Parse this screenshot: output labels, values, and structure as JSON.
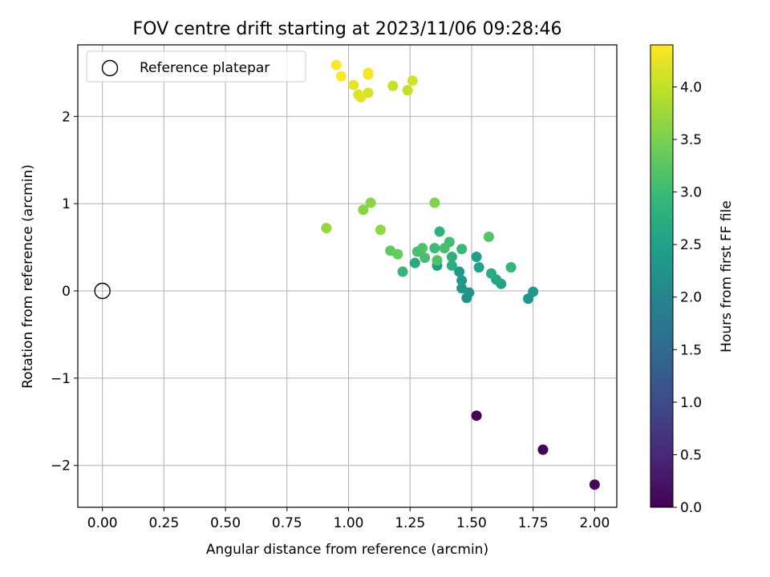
{
  "chart_data": {
    "type": "scatter",
    "title": "FOV centre drift starting at 2023/11/06 09:28:46",
    "xlabel": "Angular distance from reference (arcmin)",
    "ylabel": "Rotation from reference (arcmin)",
    "xlim": [
      -0.1,
      2.09
    ],
    "ylim": [
      -2.48,
      2.82
    ],
    "xticks": [
      0.0,
      0.25,
      0.5,
      0.75,
      1.0,
      1.25,
      1.5,
      1.75,
      2.0
    ],
    "xtick_labels": [
      "0.00",
      "0.25",
      "0.50",
      "0.75",
      "1.00",
      "1.25",
      "1.50",
      "1.75",
      "2.00"
    ],
    "yticks": [
      -2,
      -1,
      0,
      1,
      2
    ],
    "ytick_labels": [
      "−2",
      "−1",
      "0",
      "1",
      "2"
    ],
    "grid": true,
    "legend": {
      "position": "top-left",
      "entries": [
        "Reference platepar"
      ]
    },
    "reference_point": {
      "x": 0.0,
      "y": 0.0
    },
    "colorbar": {
      "label": "Hours from first FF file",
      "colormap": "viridis",
      "range": [
        0.0,
        4.4
      ],
      "ticks": [
        0.0,
        0.5,
        1.0,
        1.5,
        2.0,
        2.5,
        3.0,
        3.5,
        4.0
      ],
      "tick_labels": [
        "0.0",
        "0.5",
        "1.0",
        "1.5",
        "2.0",
        "2.5",
        "3.0",
        "3.5",
        "4.0"
      ]
    },
    "points": [
      {
        "x": 1.52,
        "y": -1.43,
        "hours": 0.0
      },
      {
        "x": 1.79,
        "y": -1.82,
        "hours": 0.05
      },
      {
        "x": 2.0,
        "y": -2.22,
        "hours": 0.1
      },
      {
        "x": 1.48,
        "y": -0.08,
        "hours": 2.2
      },
      {
        "x": 1.49,
        "y": -0.02,
        "hours": 2.25
      },
      {
        "x": 1.46,
        "y": 0.03,
        "hours": 2.3
      },
      {
        "x": 1.46,
        "y": 0.12,
        "hours": 2.35
      },
      {
        "x": 1.45,
        "y": 0.22,
        "hours": 2.4
      },
      {
        "x": 1.36,
        "y": 0.29,
        "hours": 2.42
      },
      {
        "x": 1.52,
        "y": 0.39,
        "hours": 2.45
      },
      {
        "x": 1.53,
        "y": 0.27,
        "hours": 2.5
      },
      {
        "x": 1.73,
        "y": -0.09,
        "hours": 2.3
      },
      {
        "x": 1.75,
        "y": -0.01,
        "hours": 2.35
      },
      {
        "x": 1.62,
        "y": 0.08,
        "hours": 2.55
      },
      {
        "x": 1.6,
        "y": 0.13,
        "hours": 2.6
      },
      {
        "x": 1.58,
        "y": 0.2,
        "hours": 2.7
      },
      {
        "x": 1.42,
        "y": 0.29,
        "hours": 2.75
      },
      {
        "x": 1.42,
        "y": 0.39,
        "hours": 2.8
      },
      {
        "x": 1.27,
        "y": 0.32,
        "hours": 2.65
      },
      {
        "x": 1.37,
        "y": 0.68,
        "hours": 2.85
      },
      {
        "x": 1.22,
        "y": 0.22,
        "hours": 2.9
      },
      {
        "x": 1.66,
        "y": 0.27,
        "hours": 2.9
      },
      {
        "x": 1.46,
        "y": 0.48,
        "hours": 2.95
      },
      {
        "x": 1.35,
        "y": 0.49,
        "hours": 3.0
      },
      {
        "x": 1.41,
        "y": 0.56,
        "hours": 3.05
      },
      {
        "x": 1.39,
        "y": 0.49,
        "hours": 3.1
      },
      {
        "x": 1.31,
        "y": 0.38,
        "hours": 3.1
      },
      {
        "x": 1.28,
        "y": 0.45,
        "hours": 3.1
      },
      {
        "x": 1.3,
        "y": 0.49,
        "hours": 3.15
      },
      {
        "x": 1.36,
        "y": 0.35,
        "hours": 3.15
      },
      {
        "x": 1.57,
        "y": 0.62,
        "hours": 3.2
      },
      {
        "x": 1.17,
        "y": 0.46,
        "hours": 3.3
      },
      {
        "x": 1.2,
        "y": 0.42,
        "hours": 3.35
      },
      {
        "x": 1.35,
        "y": 1.01,
        "hours": 3.55
      },
      {
        "x": 1.06,
        "y": 0.93,
        "hours": 3.6
      },
      {
        "x": 1.09,
        "y": 1.01,
        "hours": 3.62
      },
      {
        "x": 1.13,
        "y": 0.7,
        "hours": 3.65
      },
      {
        "x": 0.91,
        "y": 0.72,
        "hours": 3.7
      },
      {
        "x": 1.24,
        "y": 2.3,
        "hours": 4.0
      },
      {
        "x": 1.18,
        "y": 2.35,
        "hours": 4.05
      },
      {
        "x": 1.26,
        "y": 2.41,
        "hours": 4.1
      },
      {
        "x": 1.08,
        "y": 2.27,
        "hours": 4.15
      },
      {
        "x": 1.04,
        "y": 2.25,
        "hours": 4.18
      },
      {
        "x": 1.05,
        "y": 2.22,
        "hours": 4.2
      },
      {
        "x": 1.02,
        "y": 2.36,
        "hours": 4.25
      },
      {
        "x": 1.08,
        "y": 2.48,
        "hours": 4.3
      },
      {
        "x": 1.08,
        "y": 2.5,
        "hours": 4.35
      },
      {
        "x": 0.95,
        "y": 2.59,
        "hours": 4.38
      },
      {
        "x": 0.97,
        "y": 2.46,
        "hours": 4.4
      }
    ]
  }
}
